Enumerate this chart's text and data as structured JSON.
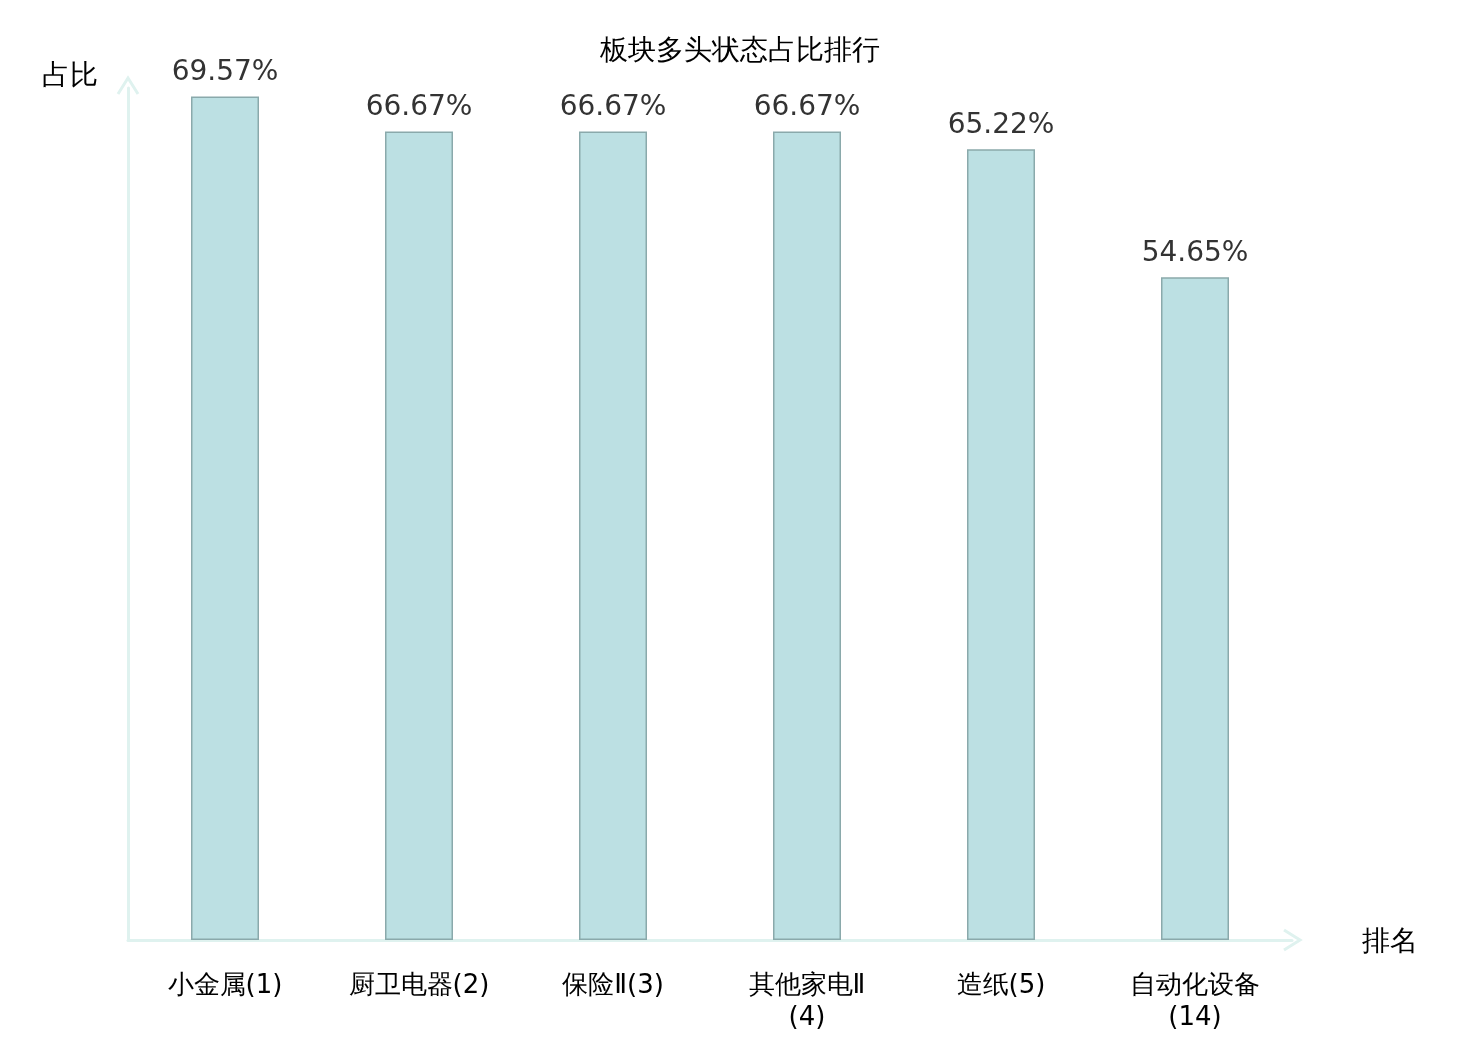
{
  "chart_data": {
    "type": "bar",
    "title": "板块多头状态占比排行",
    "xlabel": "排名",
    "ylabel": "占比",
    "categories": [
      "小金属(1)",
      "厨卫电器(2)",
      "保险Ⅱ(3)",
      "其他家电Ⅱ(4)",
      "造纸(5)",
      "自动化设备(14)"
    ],
    "values": [
      69.57,
      66.67,
      66.67,
      66.67,
      65.22,
      54.65
    ],
    "value_labels": [
      "69.57%",
      "66.67%",
      "66.67%",
      "66.67%",
      "65.22%",
      "54.65%"
    ],
    "color": "#bce0e3",
    "grid": false
  }
}
